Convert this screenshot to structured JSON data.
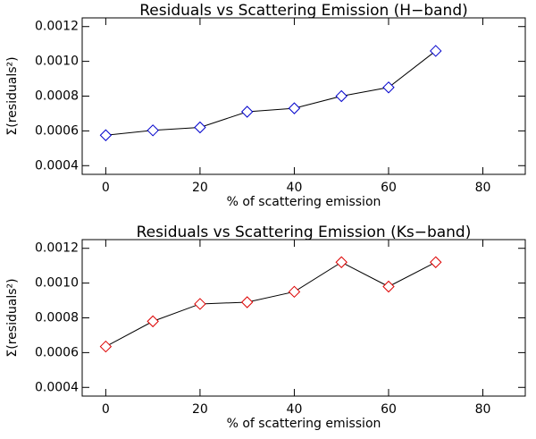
{
  "chart_data": [
    {
      "type": "line",
      "title": "Residuals vs Scattering Emission (H−band)",
      "x_label": "% of scattering emission",
      "y_label": "Σ(residuals²)",
      "x": [
        0,
        10,
        20,
        30,
        40,
        50,
        60,
        70
      ],
      "series": [
        {
          "name": "H-band",
          "color": "#0000cc",
          "values": [
            0.000575,
            0.000603,
            0.00062,
            0.00071,
            0.00073,
            0.0008,
            0.00085,
            0.00106
          ]
        }
      ],
      "xlim": [
        -5,
        89
      ],
      "xticks": [
        0,
        20,
        40,
        60,
        80
      ],
      "ylim": [
        0.00035,
        0.00125
      ],
      "yticks": [
        0.0004,
        0.0006,
        0.0008,
        {
          "value": 0.001,
          "label": "0.0010"
        },
        0.0012
      ]
    },
    {
      "type": "line",
      "title": "Residuals vs Scattering Emission (Ks−band)",
      "x_label": "% of scattering emission",
      "y_label": "Σ(residuals²)",
      "x": [
        0,
        10,
        20,
        30,
        40,
        50,
        60,
        70
      ],
      "series": [
        {
          "name": "Ks-band",
          "color": "#dd0000",
          "values": [
            0.000635,
            0.00078,
            0.00088,
            0.00089,
            0.00095,
            0.00112,
            0.00098,
            0.00112
          ]
        }
      ],
      "xlim": [
        -5,
        89
      ],
      "xticks": [
        0,
        20,
        40,
        60,
        80
      ],
      "ylim": [
        0.00035,
        0.00125
      ],
      "yticks": [
        0.0004,
        0.0006,
        0.0008,
        {
          "value": 0.001,
          "label": "0.0010"
        },
        0.0012
      ]
    }
  ]
}
